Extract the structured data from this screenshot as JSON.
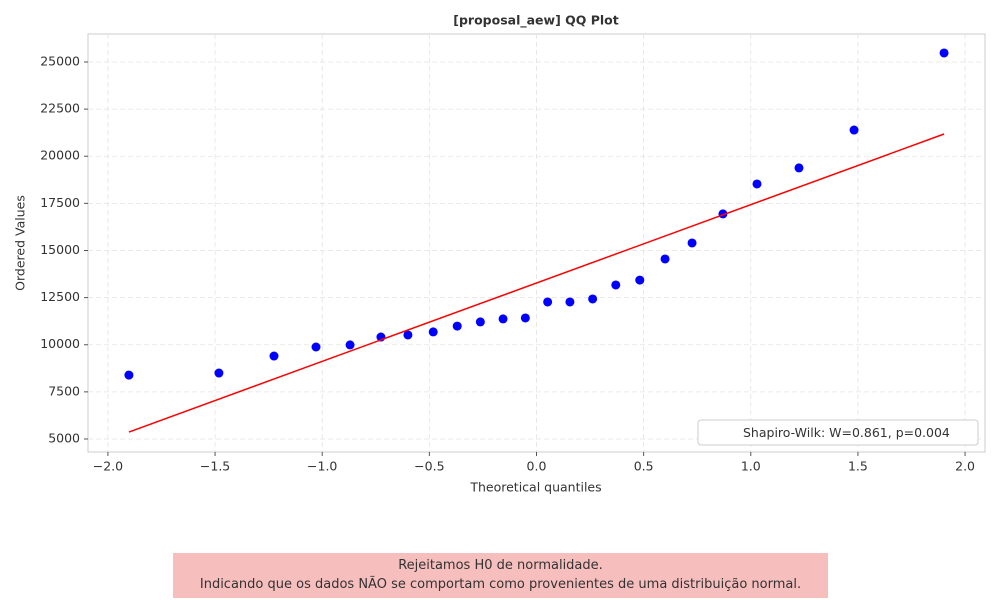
{
  "chart_data": {
    "type": "scatter",
    "title": "[proposal_aew] QQ Plot",
    "xlabel": "Theoretical quantiles",
    "ylabel": "Ordered Values",
    "series": [
      {
        "type": "scatter",
        "color": "#0000ff",
        "x": [
          -1.902,
          -1.482,
          -1.225,
          -1.029,
          -0.87,
          -0.726,
          -0.6,
          -0.482,
          -0.37,
          -0.262,
          -0.156,
          -0.052,
          0.052,
          0.156,
          0.262,
          0.37,
          0.482,
          0.6,
          0.726,
          0.87,
          1.029,
          1.225,
          1.482,
          1.902
        ],
        "values": [
          8390,
          8500,
          9400,
          9880,
          9990,
          10410,
          10520,
          10680,
          10990,
          11210,
          11370,
          11420,
          12270,
          12270,
          12430,
          13170,
          13430,
          14550,
          15400,
          16940,
          18530,
          19380,
          21390,
          25480
        ]
      },
      {
        "type": "line",
        "color": "#ff0000",
        "x": [
          -1.902,
          1.902
        ],
        "values": [
          5370,
          21180
        ]
      }
    ],
    "xlim": [
      -2.093,
      2.093
    ],
    "xticks": [
      {
        "value": -2,
        "label": "−2.0"
      },
      {
        "value": -1.5,
        "label": "−1.5"
      },
      {
        "value": -1,
        "label": "−1.0"
      },
      {
        "value": -0.5,
        "label": "−0.5"
      },
      {
        "value": 0,
        "label": "0.0"
      },
      0.5,
      {
        "value": 1,
        "label": "1.0"
      },
      1.5,
      {
        "value": 2,
        "label": "2.0"
      }
    ],
    "ylim": [
      4310,
      26485
    ],
    "yticks": [
      5000,
      7500,
      10000,
      12500,
      15000,
      17500,
      20000,
      22500,
      25000
    ],
    "grid": true,
    "legend": {
      "label": "Shapiro-Wilk: W=0.861, p=0.004",
      "loc": "lower right"
    },
    "annotations": [
      "Rejeitamos H0 de normalidade.",
      "Indicando que os dados NÃO se comportam como provenientes de uma distribuição normal."
    ]
  }
}
